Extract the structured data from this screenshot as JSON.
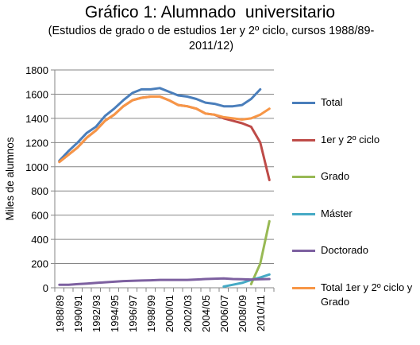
{
  "title": "Gráfico 1: Alumnado  universitario",
  "subtitle": "(Estudios de grado o de estudios 1er y 2º ciclo, cursos 1988/89-2011/12)",
  "chart_data": {
    "type": "line",
    "title": "Gráfico 1: Alumnado  universitario",
    "subtitle": "(Estudios de grado o de estudios 1er y 2º ciclo, cursos 1988/89-2011/12)",
    "xlabel": "",
    "ylabel": "Miles de alumnos",
    "ylim": [
      0,
      1800
    ],
    "yticks": [
      0,
      200,
      400,
      600,
      800,
      1000,
      1200,
      1400,
      1600,
      1800
    ],
    "grid": true,
    "legend": "right",
    "categories": [
      "1988/89",
      "1989/90",
      "1990/91",
      "1991/92",
      "1992/93",
      "1993/94",
      "1994/95",
      "1995/96",
      "1996/97",
      "1997/98",
      "1998/99",
      "1999/00",
      "2000/01",
      "2001/02",
      "2002/03",
      "2003/04",
      "2004/05",
      "2005/06",
      "2006/07",
      "2007/08",
      "2008/09",
      "2009/10",
      "2010/11",
      "2011/12"
    ],
    "tick_labels": [
      "1988/89",
      "1990/91",
      "1992/93",
      "1994/95",
      "1996/97",
      "1998/99",
      "2000/01",
      "2002/03",
      "2004/05",
      "2006/07",
      "2008/09",
      "2010/11"
    ],
    "series": [
      {
        "name": "Total",
        "color": "#4a7ebb",
        "values": [
          1050,
          1130,
          1200,
          1280,
          1330,
          1420,
          1480,
          1550,
          1610,
          1640,
          1640,
          1650,
          1620,
          1590,
          1580,
          1560,
          1530,
          1520,
          1500,
          1500,
          1510,
          1560,
          1640,
          null
        ]
      },
      {
        "name": "1er y 2º ciclo",
        "color": "#be4b48",
        "values": [
          1040,
          1100,
          1160,
          1240,
          1300,
          1380,
          1430,
          1500,
          1550,
          1570,
          1580,
          1580,
          1550,
          1510,
          1500,
          1480,
          1440,
          1430,
          1400,
          1380,
          1360,
          1330,
          1200,
          890
        ]
      },
      {
        "name": "Grado",
        "color": "#98b954",
        "values": [
          null,
          null,
          null,
          null,
          null,
          null,
          null,
          null,
          null,
          null,
          null,
          null,
          null,
          null,
          null,
          null,
          null,
          null,
          null,
          null,
          null,
          30,
          200,
          550
        ]
      },
      {
        "name": "Máster",
        "color": "#46aac5",
        "values": [
          null,
          null,
          null,
          null,
          null,
          null,
          null,
          null,
          null,
          null,
          null,
          null,
          null,
          null,
          null,
          null,
          null,
          null,
          10,
          25,
          40,
          65,
          85,
          110
        ]
      },
      {
        "name": "Doctorado",
        "color": "#7d60a0",
        "values": [
          25,
          25,
          30,
          35,
          40,
          45,
          50,
          55,
          57,
          60,
          62,
          65,
          65,
          65,
          65,
          68,
          72,
          75,
          77,
          72,
          70,
          68,
          70,
          72
        ]
      },
      {
        "name": "Total 1er y 2º ciclo y Grado",
        "color": "#f79646",
        "values": [
          1040,
          1100,
          1160,
          1240,
          1300,
          1380,
          1430,
          1500,
          1550,
          1570,
          1580,
          1580,
          1550,
          1510,
          1500,
          1480,
          1440,
          1430,
          1410,
          1400,
          1390,
          1400,
          1430,
          1480
        ]
      }
    ]
  }
}
